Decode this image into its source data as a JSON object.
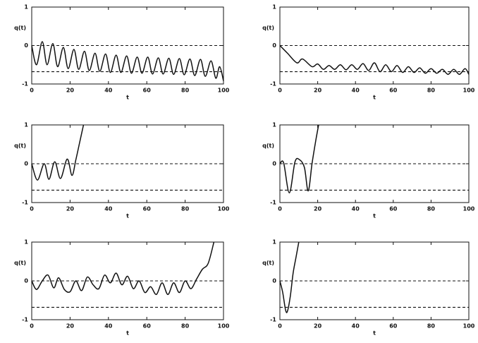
{
  "chart_data": [
    {
      "type": "line",
      "xlabel": "t",
      "ylabel": "q(t)",
      "xlim": [
        0,
        100
      ],
      "ylim": [
        -1,
        1
      ],
      "xticks": [
        0,
        20,
        40,
        60,
        80,
        100
      ],
      "yticks": [
        -1,
        0,
        1
      ],
      "hlines": [
        0,
        -0.68
      ],
      "color": "#111111",
      "x": [
        0,
        2.5,
        5.5,
        8,
        11,
        13.5,
        16.5,
        19,
        22,
        24.5,
        27.5,
        30,
        33,
        35.5,
        38.5,
        41,
        44,
        46.5,
        49.5,
        52,
        55,
        57.5,
        60.5,
        63,
        66,
        68.5,
        71.5,
        74,
        77,
        79.5,
        82.5,
        85,
        88,
        90.5,
        93.5,
        96,
        98,
        100
      ],
      "values": [
        0,
        -0.5,
        0.1,
        -0.5,
        0.05,
        -0.55,
        -0.05,
        -0.6,
        -0.1,
        -0.62,
        -0.15,
        -0.65,
        -0.2,
        -0.67,
        -0.22,
        -0.7,
        -0.25,
        -0.7,
        -0.27,
        -0.72,
        -0.3,
        -0.72,
        -0.3,
        -0.74,
        -0.32,
        -0.74,
        -0.33,
        -0.75,
        -0.34,
        -0.76,
        -0.35,
        -0.78,
        -0.36,
        -0.8,
        -0.4,
        -0.85,
        -0.55,
        -0.92
      ]
    },
    {
      "type": "line",
      "xlabel": "t",
      "ylabel": "q(t)",
      "xlim": [
        0,
        100
      ],
      "ylim": [
        -1,
        1
      ],
      "xticks": [
        0,
        20,
        40,
        60,
        80,
        100
      ],
      "yticks": [
        -1,
        0,
        1
      ],
      "hlines": [
        0,
        -0.68
      ],
      "color": "#111111",
      "x": [
        0,
        4,
        9,
        12,
        17,
        20,
        23,
        26,
        29,
        32,
        35,
        38,
        41,
        44,
        47,
        50,
        53,
        56,
        59,
        62,
        65,
        68,
        71,
        74,
        77,
        80,
        83,
        86,
        89,
        92,
        95,
        98,
        100
      ],
      "values": [
        0,
        -0.2,
        -0.45,
        -0.35,
        -0.55,
        -0.48,
        -0.62,
        -0.52,
        -0.62,
        -0.5,
        -0.63,
        -0.5,
        -0.62,
        -0.47,
        -0.65,
        -0.45,
        -0.68,
        -0.5,
        -0.68,
        -0.52,
        -0.7,
        -0.55,
        -0.7,
        -0.58,
        -0.72,
        -0.6,
        -0.72,
        -0.62,
        -0.75,
        -0.62,
        -0.75,
        -0.6,
        -0.75
      ]
    },
    {
      "type": "line",
      "xlabel": "t",
      "ylabel": "q(t)",
      "xlim": [
        0,
        100
      ],
      "ylim": [
        -1,
        1
      ],
      "xticks": [
        0,
        20,
        40,
        60,
        80,
        100
      ],
      "yticks": [
        -1,
        0,
        1
      ],
      "hlines": [
        0,
        -0.68
      ],
      "color": "#111111",
      "x": [
        0,
        3,
        6.5,
        9,
        12,
        15,
        18.5,
        21,
        23,
        25,
        27
      ],
      "values": [
        0,
        -0.42,
        0,
        -0.4,
        0.05,
        -0.38,
        0.12,
        -0.3,
        0.1,
        0.55,
        1
      ]
    },
    {
      "type": "line",
      "xlabel": "t",
      "ylabel": "q(t)",
      "xlim": [
        0,
        100
      ],
      "ylim": [
        -1,
        1
      ],
      "xticks": [
        0,
        20,
        40,
        60,
        80,
        100
      ],
      "yticks": [
        -1,
        0,
        1
      ],
      "hlines": [
        0,
        -0.68
      ],
      "color": "#111111",
      "x": [
        0,
        2,
        5,
        8,
        10.5,
        13,
        15,
        17,
        19,
        20.5
      ],
      "values": [
        0,
        0.02,
        -0.75,
        0.05,
        0.1,
        -0.1,
        -0.7,
        0,
        0.6,
        1
      ]
    },
    {
      "type": "line",
      "xlabel": "t",
      "ylabel": "q(t)",
      "xlim": [
        0,
        100
      ],
      "ylim": [
        -1,
        1
      ],
      "xticks": [
        0,
        20,
        40,
        60,
        80,
        100
      ],
      "yticks": [
        -1,
        0,
        1
      ],
      "hlines": [
        0,
        -0.68
      ],
      "color": "#111111",
      "x": [
        0,
        2.5,
        5.5,
        8.5,
        11.5,
        14,
        17,
        20,
        23,
        26,
        29,
        32,
        35,
        38,
        41,
        44,
        47,
        50,
        53,
        56,
        59,
        62,
        65,
        68,
        71,
        74,
        77,
        80,
        83,
        86,
        89,
        92,
        95
      ],
      "values": [
        0,
        -0.22,
        0,
        0.15,
        -0.18,
        0.08,
        -0.22,
        -0.28,
        0,
        -0.25,
        0.1,
        -0.1,
        -0.2,
        0.15,
        -0.05,
        0.2,
        -0.1,
        0.12,
        -0.2,
        0,
        -0.3,
        -0.15,
        -0.35,
        -0.05,
        -0.35,
        -0.05,
        -0.3,
        0,
        -0.2,
        0.05,
        0.3,
        0.45,
        1
      ]
    },
    {
      "type": "line",
      "xlabel": "t",
      "ylabel": "q(t)",
      "xlim": [
        0,
        100
      ],
      "ylim": [
        -1,
        1
      ],
      "xticks": [
        0,
        20,
        40,
        60,
        80,
        100
      ],
      "yticks": [
        -1,
        0,
        1
      ],
      "hlines": [
        0,
        -0.68
      ],
      "color": "#111111",
      "x": [
        0,
        1.5,
        3,
        4,
        5.5,
        7,
        8.5,
        10
      ],
      "values": [
        0,
        -0.3,
        -0.75,
        -0.78,
        -0.4,
        0.2,
        0.6,
        1
      ]
    }
  ]
}
